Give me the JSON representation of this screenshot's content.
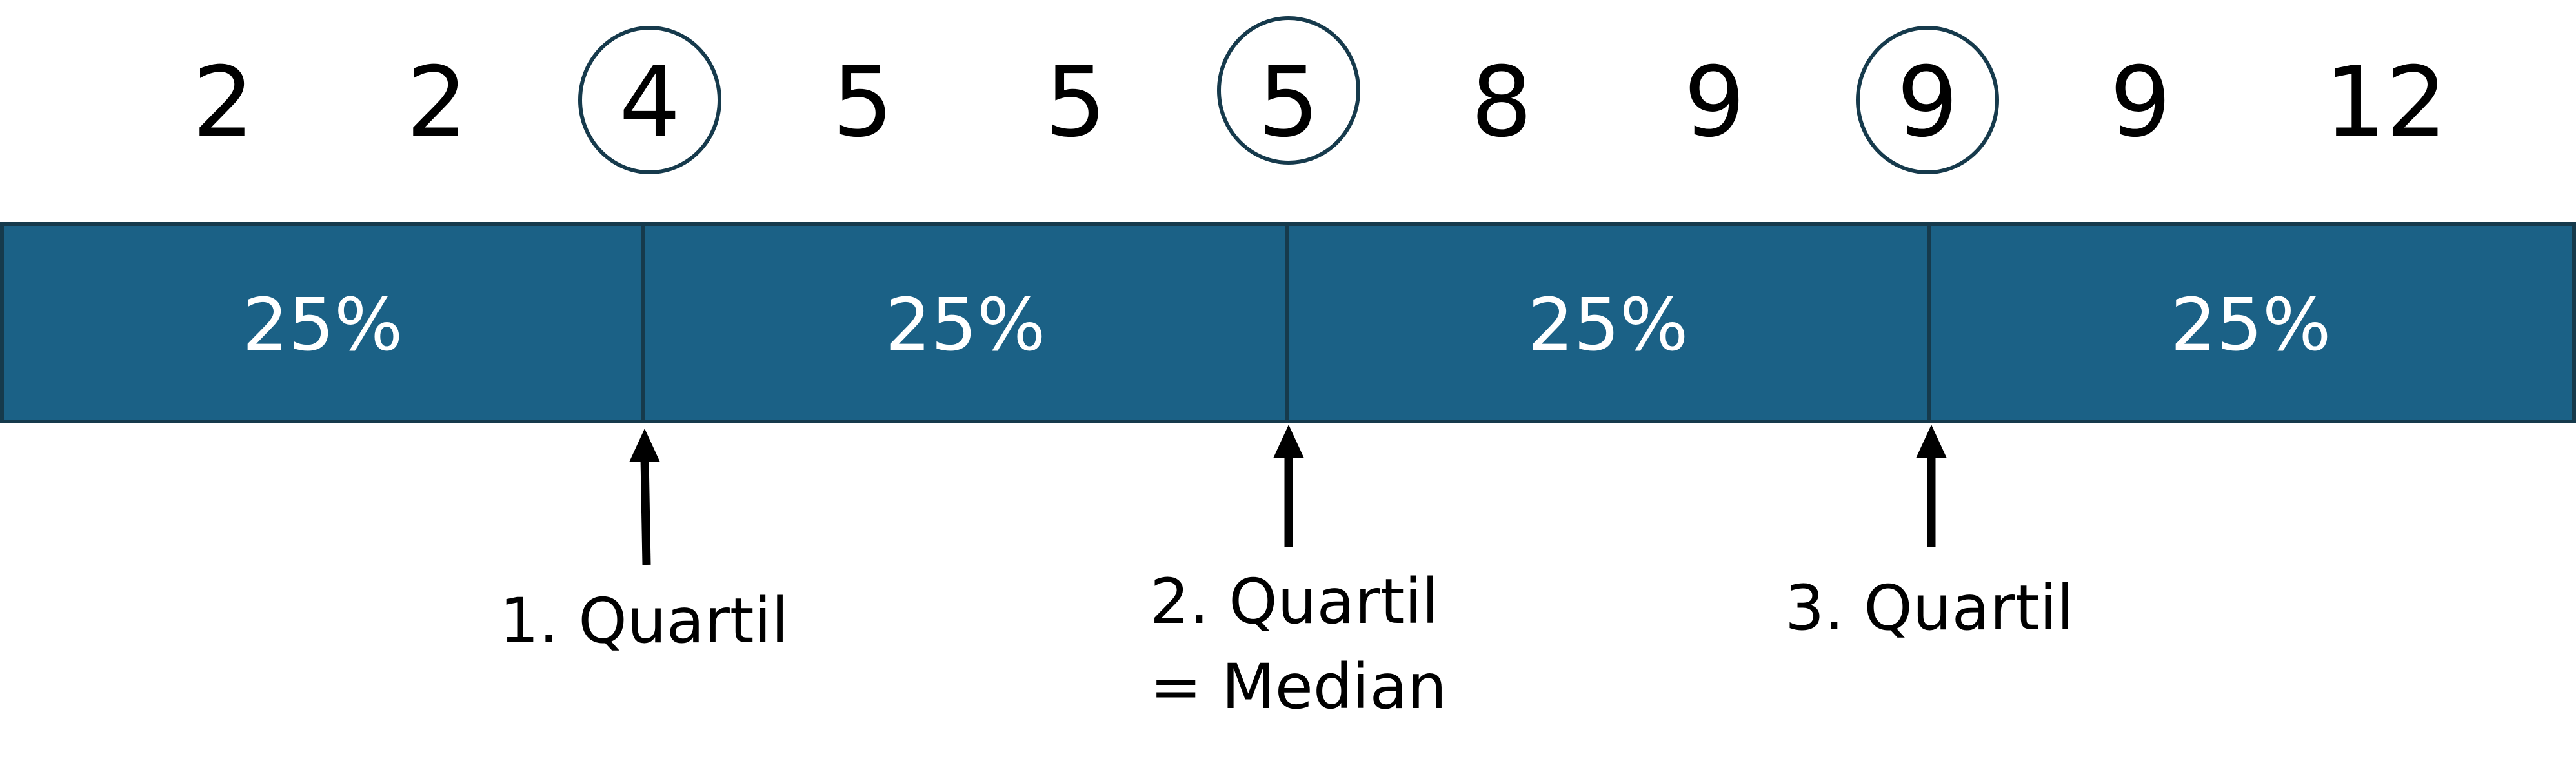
{
  "numbers": [
    {
      "value": "2",
      "circled": false
    },
    {
      "value": "2",
      "circled": false
    },
    {
      "value": "4",
      "circled": true
    },
    {
      "value": "5",
      "circled": false
    },
    {
      "value": "5",
      "circled": false
    },
    {
      "value": "5",
      "circled": true
    },
    {
      "value": "8",
      "circled": false
    },
    {
      "value": "9",
      "circled": false
    },
    {
      "value": "9",
      "circled": true
    },
    {
      "value": "9",
      "circled": false
    },
    {
      "value": "12",
      "circled": false
    }
  ],
  "segments": [
    "25%",
    "25%",
    "25%",
    "25%"
  ],
  "quartiles": [
    {
      "lines": [
        "1. Quartil"
      ]
    },
    {
      "lines": [
        "2. Quartil",
        "= Median"
      ]
    },
    {
      "lines": [
        "3. Quartil"
      ]
    }
  ],
  "colors": {
    "bar": "#1b6186",
    "bar_border": "#163a4c",
    "segment_text": "#ffffff",
    "text": "#000000"
  }
}
